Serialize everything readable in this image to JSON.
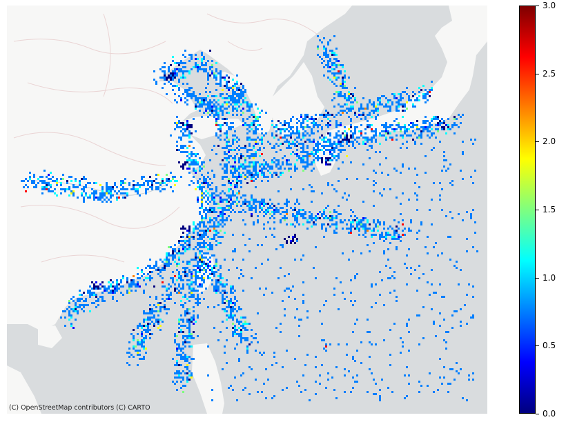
{
  "map": {
    "attribution": "(C) OpenStreetMap contributors (C) CARTO",
    "basemap_style": "CARTO light (positron)",
    "land_color": "#f7f7f6",
    "sea_color": "#d9dcde",
    "border_color": "#e6cfcf",
    "region": "East China Sea, Yellow Sea, Bohai Sea, Korea Strait, Taiwan Strait, Sea of Japan",
    "layer": "gridded vessel density heatmap"
  },
  "colorbar": {
    "colormap": "jet",
    "min": 0.0,
    "max": 3.0,
    "ticks": [
      "0.0",
      "0.5",
      "1.0",
      "1.5",
      "2.0",
      "2.5",
      "3.0"
    ],
    "tick_values": [
      0.0,
      0.5,
      1.0,
      1.5,
      2.0,
      2.5,
      3.0
    ],
    "colors": [
      "#00007f",
      "#0000ff",
      "#007fff",
      "#00ffff",
      "#7fff7f",
      "#ffff00",
      "#ff7f00",
      "#ff0000",
      "#7f0000"
    ]
  }
}
